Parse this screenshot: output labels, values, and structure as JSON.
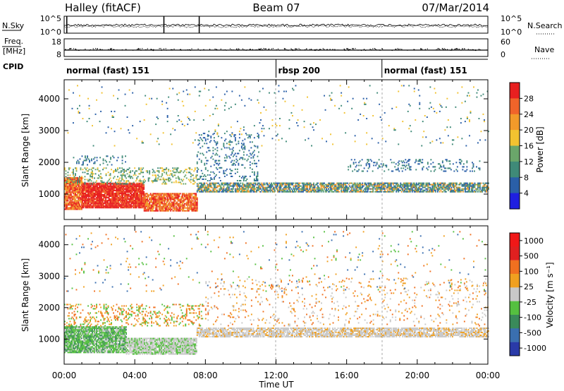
{
  "header": {
    "station": "Halley (fitACF)",
    "beam": "Beam 07",
    "date": "07/Mar/2014"
  },
  "noise_panel": {
    "left_label": "N.Sky",
    "left_ticks": [
      "10^5",
      "10^0"
    ],
    "right_label": "N.Search",
    "right_ticks": [
      "10^5",
      "10^0"
    ]
  },
  "freq_panel": {
    "left_label_1": "Freq.",
    "left_label_2": "[MHz]",
    "left_ticks": [
      "18",
      "8"
    ],
    "right_label": "Nave",
    "right_ticks": [
      "60",
      "0"
    ]
  },
  "cpid": {
    "label": "CPID",
    "segments": [
      {
        "name": "normal (fast) 151",
        "start_h": 0,
        "end_h": 12
      },
      {
        "name": "rbsp 200",
        "start_h": 12,
        "end_h": 18
      },
      {
        "name": "normal (fast) 151",
        "start_h": 18,
        "end_h": 24
      }
    ]
  },
  "time_axis": {
    "label": "Time UT",
    "ticks": [
      "00:00",
      "04:00",
      "08:00",
      "12:00",
      "16:00",
      "20:00",
      "00:00"
    ]
  },
  "chart_data": [
    {
      "type": "heatmap",
      "name": "power",
      "ylabel": "Slant Range [km]",
      "yticks": [
        "1000",
        "2000",
        "3000",
        "4000"
      ],
      "ylim": [
        200,
        4600
      ],
      "xlim": [
        0,
        24
      ],
      "colorbar": {
        "label": "Power [dB]",
        "ticks": [
          "4",
          "8",
          "12",
          "16",
          "20",
          "24",
          "28"
        ],
        "colors": [
          "#1f1fe0",
          "#2a5fa8",
          "#3f8a78",
          "#6aa66a",
          "#f2c230",
          "#f29a2a",
          "#f0642a",
          "#e82020"
        ]
      },
      "regions": [
        {
          "t0": 0.0,
          "t1": 1.0,
          "r0": 500,
          "r1": 1500,
          "dens": 0.9,
          "mix": [
            5,
            6,
            7
          ]
        },
        {
          "t0": 1.0,
          "t1": 4.5,
          "r0": 550,
          "r1": 1350,
          "dens": 0.95,
          "mix": [
            6,
            7,
            7
          ]
        },
        {
          "t0": 4.5,
          "t1": 7.5,
          "r0": 450,
          "r1": 1000,
          "dens": 0.85,
          "mix": [
            5,
            6,
            7
          ]
        },
        {
          "t0": 0.0,
          "t1": 7.5,
          "r0": 1300,
          "r1": 1800,
          "dens": 0.25,
          "mix": [
            3,
            4,
            2
          ]
        },
        {
          "t0": 0.5,
          "t1": 3.5,
          "r0": 1900,
          "r1": 2200,
          "dens": 0.2,
          "mix": [
            1,
            2
          ]
        },
        {
          "t0": 7.5,
          "t1": 24.0,
          "r0": 1050,
          "r1": 1350,
          "dens": 0.75,
          "mix": [
            1,
            2,
            3,
            5
          ]
        },
        {
          "t0": 7.5,
          "t1": 11.0,
          "r0": 1400,
          "r1": 2900,
          "dens": 0.15,
          "mix": [
            1,
            2
          ]
        },
        {
          "t0": 16.0,
          "t1": 23.5,
          "r0": 1700,
          "r1": 2100,
          "dens": 0.15,
          "mix": [
            1,
            2
          ]
        },
        {
          "t0": 0.0,
          "t1": 24.0,
          "r0": 2500,
          "r1": 4400,
          "dens": 0.02,
          "mix": [
            1,
            2,
            4
          ]
        }
      ]
    },
    {
      "type": "heatmap",
      "name": "velocity",
      "ylabel": "Slant Range [km]",
      "yticks": [
        "1000",
        "2000",
        "3000",
        "4000"
      ],
      "ylim": [
        200,
        4600
      ],
      "xlim": [
        0,
        24
      ],
      "colorbar": {
        "label": "Velocity [m s⁻¹]",
        "ticks": [
          "1000",
          "500",
          "100",
          "25",
          "-25",
          "-100",
          "-500",
          "-1000"
        ],
        "colors": [
          "#2a3aa8",
          "#3a6fb0",
          "#3a8a5a",
          "#55c040",
          "#c8c8c8",
          "#f0a020",
          "#f07020",
          "#e02020",
          "#f01818"
        ]
      },
      "regions": [
        {
          "t0": 0.0,
          "t1": 3.5,
          "r0": 550,
          "r1": 1400,
          "dens": 0.9,
          "mix": [
            3,
            3,
            2,
            4
          ]
        },
        {
          "t0": 3.5,
          "t1": 7.5,
          "r0": 500,
          "r1": 1000,
          "dens": 0.85,
          "mix": [
            4,
            4,
            3
          ]
        },
        {
          "t0": 7.5,
          "t1": 24.0,
          "r0": 1050,
          "r1": 1350,
          "dens": 0.75,
          "mix": [
            4,
            4,
            4,
            5
          ]
        },
        {
          "t0": 0.0,
          "t1": 8.0,
          "r0": 1400,
          "r1": 2100,
          "dens": 0.2,
          "mix": [
            5,
            6,
            3
          ]
        },
        {
          "t0": 8.0,
          "t1": 24.0,
          "r0": 1400,
          "r1": 2900,
          "dens": 0.06,
          "mix": [
            5,
            6,
            4
          ]
        },
        {
          "t0": 0.0,
          "t1": 24.0,
          "r0": 2500,
          "r1": 4400,
          "dens": 0.02,
          "mix": [
            5,
            6,
            1,
            3
          ]
        }
      ]
    }
  ]
}
